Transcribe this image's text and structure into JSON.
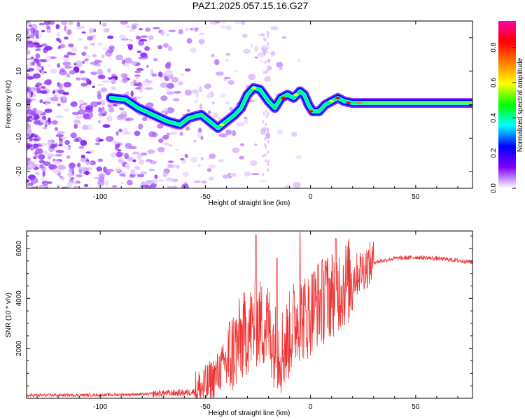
{
  "title": "PAZ1.2025.057.15.16.G27",
  "chart_data": [
    {
      "type": "heatmap",
      "xlabel": "Height of straight line (km)",
      "ylabel": "Frequency (Hz)",
      "xlim": [
        -135,
        77
      ],
      "ylim": [
        -25,
        25
      ],
      "xticks": [
        -100,
        -50,
        0,
        50
      ],
      "yticks": [
        -20,
        -10,
        0,
        10,
        20
      ],
      "colorbar": {
        "label": "Normalized spectral amplitude",
        "range": [
          0,
          0.95
        ],
        "ticks": [
          "0.0",
          "0.2",
          "0.4",
          "0.6",
          "0.8"
        ],
        "colors": [
          "#ffffff",
          "#7f00ff",
          "#0000ff",
          "#00ffff",
          "#00ff00",
          "#ffff00",
          "#ff7f00",
          "#ff0000",
          "#ff00aa"
        ]
      },
      "track": [
        [
          -95,
          2
        ],
        [
          -88,
          1.5
        ],
        [
          -82,
          -1
        ],
        [
          -75,
          -3
        ],
        [
          -68,
          -5
        ],
        [
          -62,
          -6
        ],
        [
          -58,
          -4
        ],
        [
          -52,
          -3
        ],
        [
          -48,
          -5
        ],
        [
          -44,
          -7
        ],
        [
          -40,
          -5
        ],
        [
          -36,
          -3
        ],
        [
          -33,
          -1
        ],
        [
          -30,
          3
        ],
        [
          -27,
          5
        ],
        [
          -24,
          4.5
        ],
        [
          -20,
          1
        ],
        [
          -17,
          -1
        ],
        [
          -14,
          2
        ],
        [
          -11,
          3
        ],
        [
          -8,
          2
        ],
        [
          -5,
          4
        ],
        [
          -3,
          3
        ],
        [
          -1,
          0
        ],
        [
          1,
          -2
        ],
        [
          4,
          -2
        ],
        [
          7,
          0
        ],
        [
          10,
          1
        ],
        [
          13,
          2
        ],
        [
          16,
          1
        ],
        [
          20,
          0.5
        ],
        [
          25,
          0.5
        ],
        [
          35,
          0.5
        ],
        [
          50,
          0.5
        ],
        [
          65,
          0.5
        ],
        [
          77,
          0.5
        ]
      ]
    },
    {
      "type": "line",
      "xlabel": "Height of straight line (km)",
      "ylabel": "SNR (10 * v/v)",
      "xlim": [
        -135,
        77
      ],
      "ylim": [
        0,
        6700
      ],
      "xticks": [
        -100,
        -50,
        0,
        50
      ],
      "yticks": [
        2000,
        4000,
        6000
      ],
      "color": "#ee3333",
      "envelope": {
        "x": [
          -135,
          -100,
          -80,
          -70,
          -60,
          -55,
          -50,
          -45,
          -40,
          -35,
          -30,
          -25,
          -20,
          -17,
          -14,
          -11,
          -8,
          -5,
          -2,
          0,
          3,
          6,
          10,
          15,
          20,
          25,
          30,
          40,
          50,
          60,
          70,
          77
        ],
        "y": [
          120,
          130,
          160,
          200,
          220,
          260,
          450,
          900,
          1500,
          2100,
          2700,
          3000,
          2900,
          2100,
          1900,
          2300,
          3000,
          3300,
          3200,
          3500,
          3800,
          3900,
          4200,
          4500,
          4800,
          5200,
          5450,
          5600,
          5650,
          5600,
          5520,
          5450
        ]
      },
      "peaks": [
        {
          "x": -26,
          "y": 6550
        },
        {
          "x": -16,
          "y": 5600
        },
        {
          "x": -5,
          "y": 6650
        },
        {
          "x": 7,
          "y": 5500
        },
        {
          "x": 12,
          "y": 6400
        }
      ]
    }
  ]
}
